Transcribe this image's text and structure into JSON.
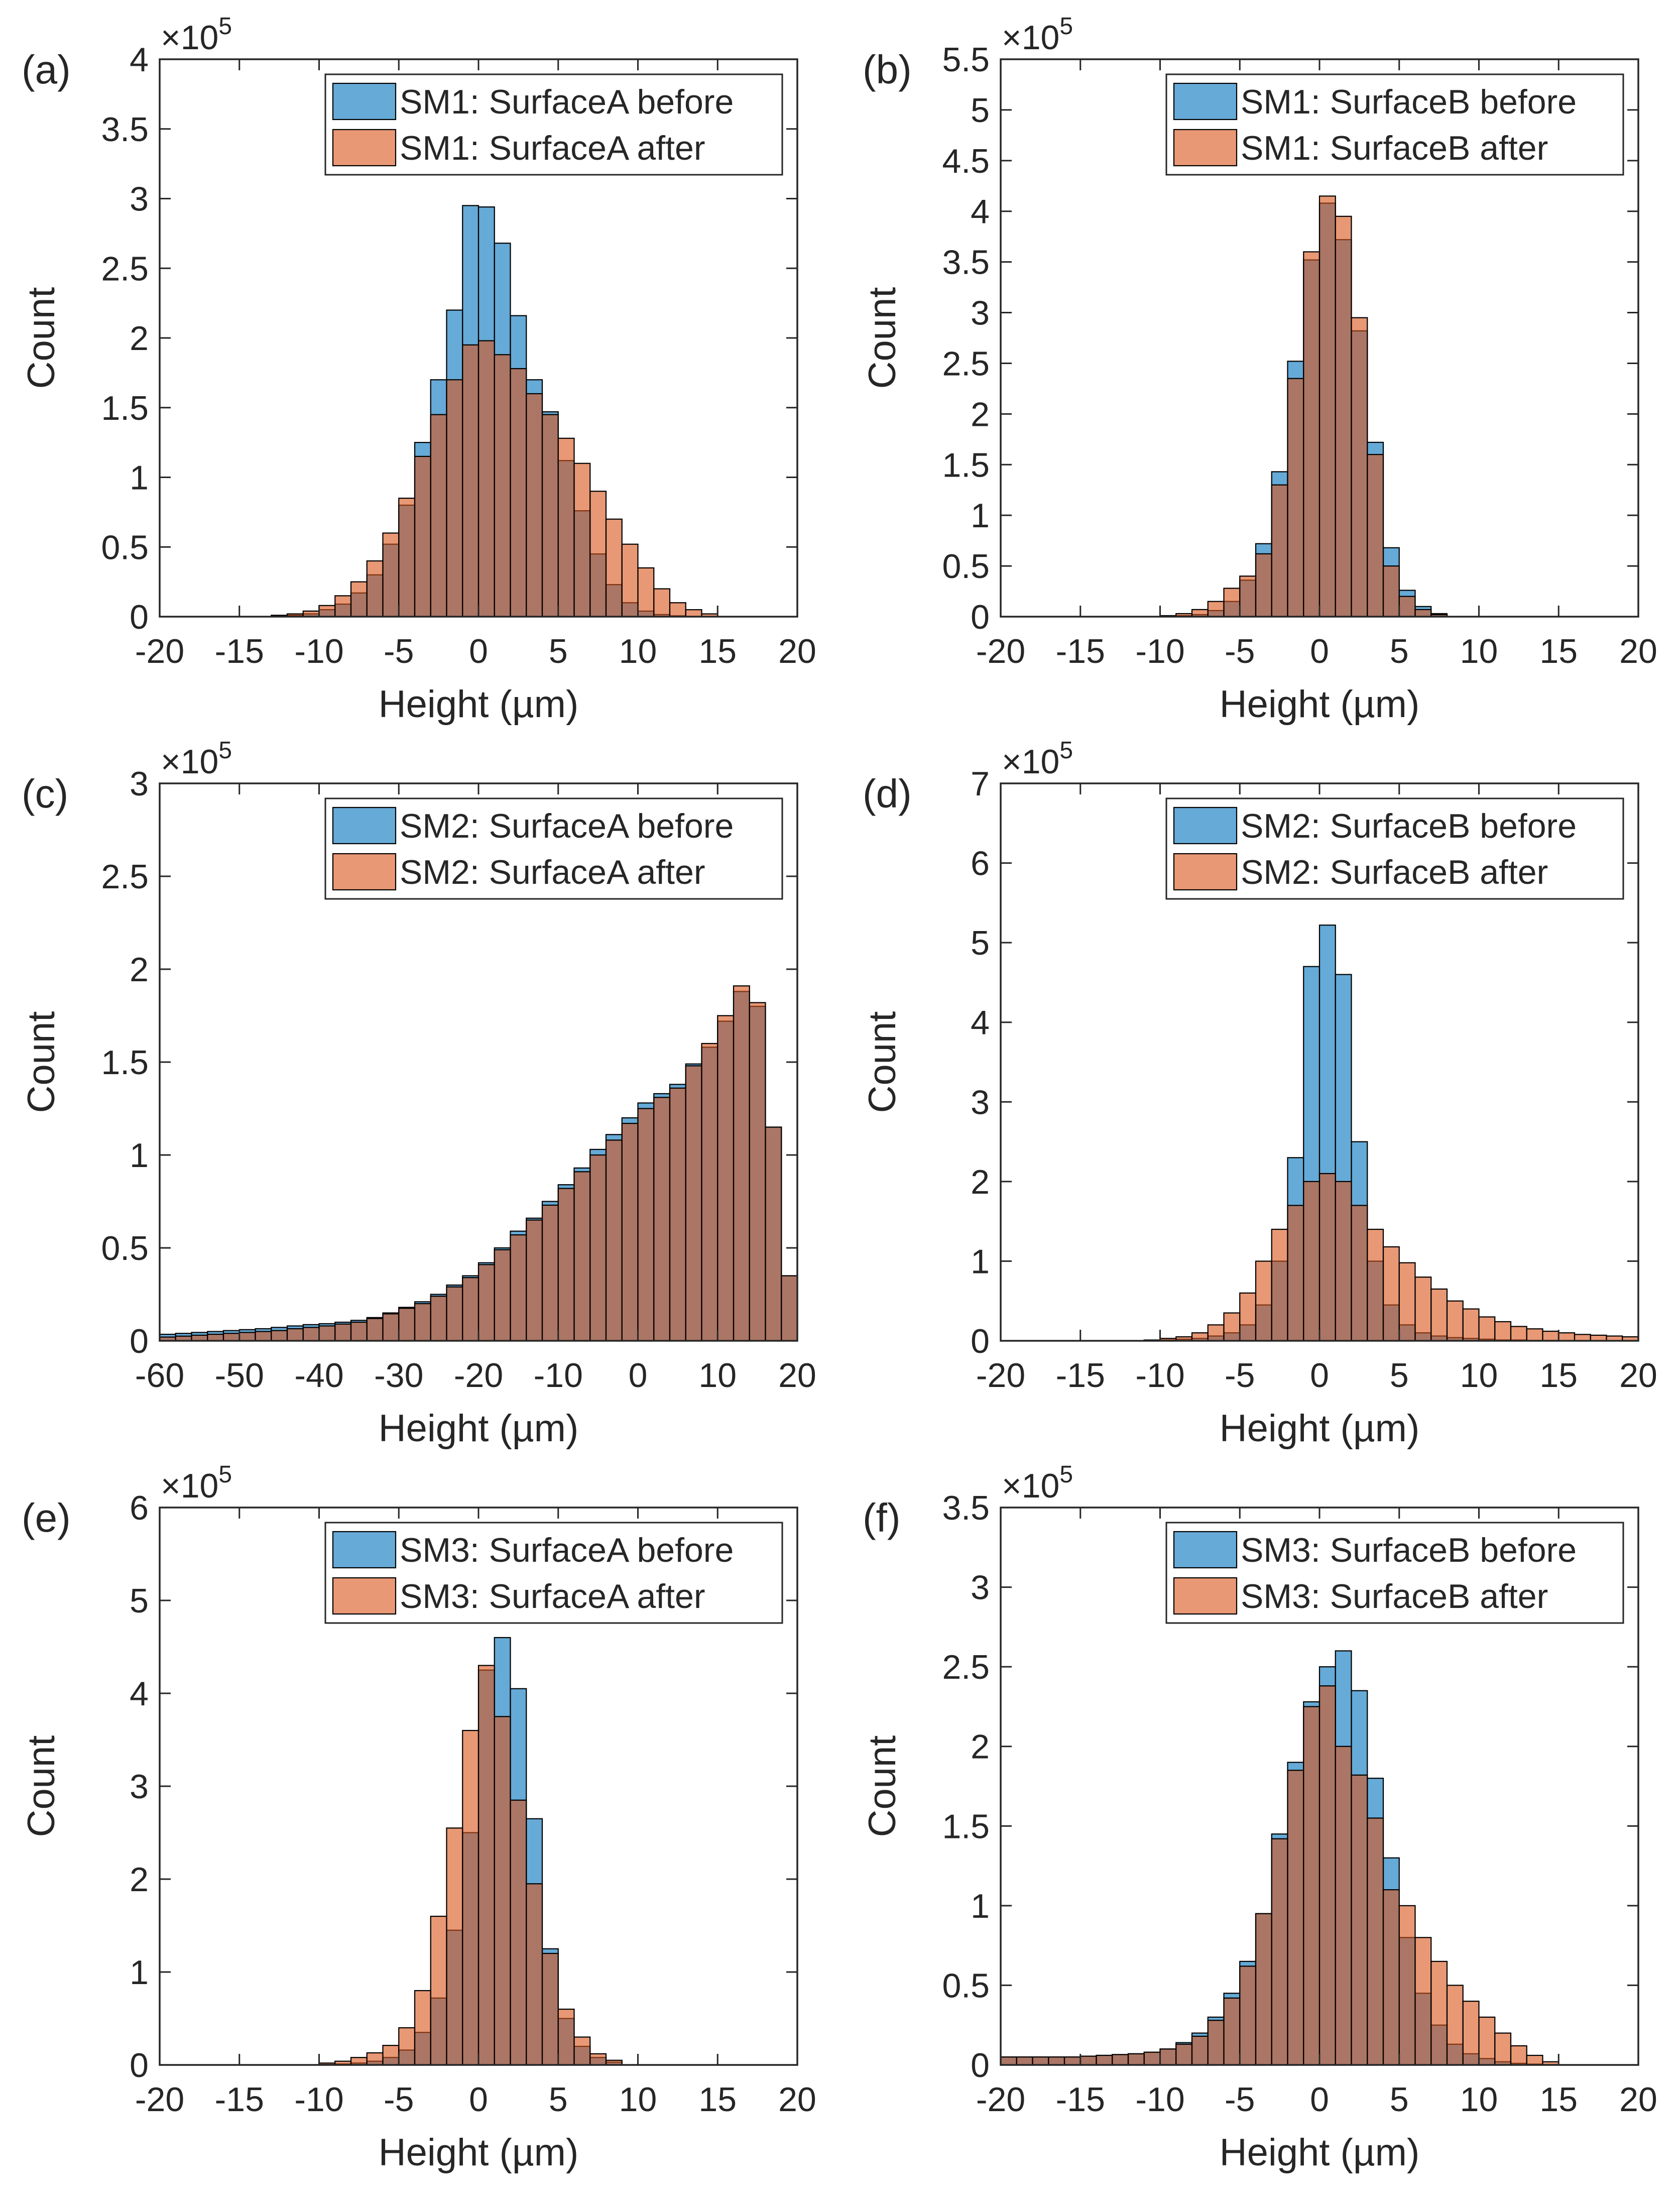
{
  "colors": {
    "before": "#0072BD",
    "after": "#D95319",
    "axis": "#262626",
    "bar_edge": "#000000"
  },
  "chart_data": [
    {
      "type": "bar",
      "panel_label": "(a)",
      "xlabel": "Height (µm)",
      "ylabel": "Count",
      "exponent_label": "×10",
      "exponent_power": "5",
      "x_ticks": [
        "-20",
        "-15",
        "-10",
        "-5",
        "0",
        "5",
        "10",
        "15",
        "20"
      ],
      "y_ticks": [
        "0",
        "0.5",
        "1",
        "1.5",
        "2",
        "2.5",
        "3",
        "3.5",
        "4"
      ],
      "xlim": [
        -20,
        20
      ],
      "ylim": [
        0,
        4
      ],
      "bin_edges": [
        -13,
        -12,
        -11,
        -10,
        -9,
        -8,
        -7,
        -6,
        -5,
        -4,
        -3,
        -2,
        -1,
        0,
        1,
        2,
        3,
        4,
        5,
        6,
        7,
        8,
        9,
        10,
        11,
        12,
        13,
        14,
        15
      ],
      "legend": {
        "position": "top-right"
      },
      "series": [
        {
          "name": "SM1: SurfaceA before",
          "color_key": "before",
          "values": [
            0.005,
            0.01,
            0.02,
            0.05,
            0.09,
            0.17,
            0.3,
            0.52,
            0.8,
            1.25,
            1.7,
            2.2,
            2.95,
            2.94,
            2.68,
            2.16,
            1.7,
            1.47,
            1.12,
            0.76,
            0.45,
            0.23,
            0.1,
            0.04,
            0.015,
            0.006,
            0.002,
            0.001
          ]
        },
        {
          "name": "SM1: SurfaceA after",
          "color_key": "after",
          "values": [
            0.01,
            0.02,
            0.04,
            0.08,
            0.15,
            0.25,
            0.4,
            0.6,
            0.85,
            1.15,
            1.45,
            1.7,
            1.95,
            1.98,
            1.88,
            1.78,
            1.6,
            1.45,
            1.28,
            1.1,
            0.9,
            0.7,
            0.52,
            0.35,
            0.2,
            0.1,
            0.05,
            0.02
          ]
        }
      ]
    },
    {
      "type": "bar",
      "panel_label": "(b)",
      "xlabel": "Height (µm)",
      "ylabel": "Count",
      "exponent_label": "×10",
      "exponent_power": "5",
      "x_ticks": [
        "-20",
        "-15",
        "-10",
        "-5",
        "0",
        "5",
        "10",
        "15",
        "20"
      ],
      "y_ticks": [
        "0",
        "0.5",
        "1",
        "1.5",
        "2",
        "2.5",
        "3",
        "3.5",
        "4",
        "4.5",
        "5",
        "5.5"
      ],
      "xlim": [
        -20,
        20
      ],
      "ylim": [
        0,
        5.5
      ],
      "bin_edges": [
        -10,
        -9,
        -8,
        -7,
        -6,
        -5,
        -4,
        -3,
        -2,
        -1,
        0,
        1,
        2,
        3,
        4,
        5,
        6,
        7,
        8
      ],
      "legend": {
        "position": "top-right"
      },
      "series": [
        {
          "name": "SM1: SurfaceB before",
          "color_key": "before",
          "values": [
            0.005,
            0.01,
            0.02,
            0.06,
            0.15,
            0.36,
            0.72,
            1.43,
            2.52,
            3.52,
            4.08,
            3.72,
            2.82,
            1.72,
            0.68,
            0.26,
            0.1,
            0.03
          ]
        },
        {
          "name": "SM1: SurfaceB after",
          "color_key": "after",
          "values": [
            0.01,
            0.03,
            0.07,
            0.15,
            0.28,
            0.4,
            0.62,
            1.3,
            2.35,
            3.6,
            4.15,
            3.95,
            2.95,
            1.6,
            0.5,
            0.2,
            0.07,
            0.02
          ]
        }
      ]
    },
    {
      "type": "bar",
      "panel_label": "(c)",
      "xlabel": "Height (µm)",
      "ylabel": "Count",
      "exponent_label": "×10",
      "exponent_power": "5",
      "x_ticks": [
        "-60",
        "-50",
        "-40",
        "-30",
        "-20",
        "-10",
        "0",
        "10",
        "20"
      ],
      "y_ticks": [
        "0",
        "0.5",
        "1",
        "1.5",
        "2",
        "2.5",
        "3"
      ],
      "xlim": [
        -60,
        20
      ],
      "ylim": [
        0,
        3
      ],
      "bin_edges": [
        -60,
        -58,
        -56,
        -54,
        -52,
        -50,
        -48,
        -46,
        -44,
        -42,
        -40,
        -38,
        -36,
        -34,
        -32,
        -30,
        -28,
        -26,
        -24,
        -22,
        -20,
        -18,
        -16,
        -14,
        -12,
        -10,
        -8,
        -6,
        -4,
        -2,
        0,
        2,
        4,
        6,
        8,
        10,
        12,
        14,
        16,
        18,
        20
      ],
      "legend": {
        "position": "top-right"
      },
      "series": [
        {
          "name": "SM2: SurfaceA before",
          "color_key": "before",
          "values": [
            0.035,
            0.04,
            0.045,
            0.05,
            0.055,
            0.06,
            0.065,
            0.072,
            0.08,
            0.087,
            0.092,
            0.1,
            0.11,
            0.125,
            0.15,
            0.18,
            0.21,
            0.25,
            0.3,
            0.35,
            0.42,
            0.5,
            0.59,
            0.66,
            0.75,
            0.84,
            0.93,
            1.03,
            1.11,
            1.2,
            1.28,
            1.33,
            1.38,
            1.49,
            1.58,
            1.72,
            1.88,
            1.8,
            1.15,
            0.35
          ]
        },
        {
          "name": "SM2: SurfaceA after",
          "color_key": "after",
          "values": [
            0.02,
            0.025,
            0.03,
            0.035,
            0.04,
            0.045,
            0.05,
            0.055,
            0.065,
            0.072,
            0.08,
            0.09,
            0.1,
            0.12,
            0.145,
            0.175,
            0.2,
            0.24,
            0.29,
            0.34,
            0.41,
            0.49,
            0.57,
            0.65,
            0.73,
            0.82,
            0.91,
            1.0,
            1.08,
            1.17,
            1.25,
            1.31,
            1.36,
            1.48,
            1.6,
            1.75,
            1.91,
            1.82,
            1.15,
            0.35
          ]
        }
      ]
    },
    {
      "type": "bar",
      "panel_label": "(d)",
      "xlabel": "Height (µm)",
      "ylabel": "Count",
      "exponent_label": "×10",
      "exponent_power": "5",
      "x_ticks": [
        "-20",
        "-15",
        "-10",
        "-5",
        "0",
        "5",
        "10",
        "15",
        "20"
      ],
      "y_ticks": [
        "0",
        "1",
        "2",
        "3",
        "4",
        "5",
        "6",
        "7"
      ],
      "xlim": [
        -20,
        20
      ],
      "ylim": [
        0,
        7
      ],
      "bin_edges": [
        -11,
        -10,
        -9,
        -8,
        -7,
        -6,
        -5,
        -4,
        -3,
        -2,
        -1,
        0,
        1,
        2,
        3,
        4,
        5,
        6,
        7,
        8,
        9,
        10,
        11,
        12,
        13,
        14,
        15,
        16,
        17,
        18,
        19,
        20
      ],
      "legend": {
        "position": "top-right"
      },
      "series": [
        {
          "name": "SM2: SurfaceB before",
          "color_key": "before",
          "values": [
            0.005,
            0.01,
            0.02,
            0.03,
            0.06,
            0.1,
            0.2,
            0.45,
            1.0,
            2.3,
            4.7,
            5.22,
            4.6,
            2.5,
            1.0,
            0.45,
            0.2,
            0.1,
            0.06,
            0.04,
            0.03,
            0.02,
            0.01,
            0.01,
            0.005,
            0.005,
            0.003,
            0.002,
            0.002,
            0.001,
            0.001
          ]
        },
        {
          "name": "SM2: SurfaceB after",
          "color_key": "after",
          "values": [
            0.01,
            0.03,
            0.05,
            0.1,
            0.2,
            0.35,
            0.6,
            1.0,
            1.4,
            1.7,
            2.0,
            2.1,
            2.0,
            1.7,
            1.4,
            1.18,
            0.98,
            0.8,
            0.65,
            0.5,
            0.4,
            0.3,
            0.24,
            0.18,
            0.15,
            0.12,
            0.1,
            0.08,
            0.07,
            0.06,
            0.05
          ]
        }
      ]
    },
    {
      "type": "bar",
      "panel_label": "(e)",
      "xlabel": "Height (µm)",
      "ylabel": "Count",
      "exponent_label": "×10",
      "exponent_power": "5",
      "x_ticks": [
        "-20",
        "-15",
        "-10",
        "-5",
        "0",
        "5",
        "10",
        "15",
        "20"
      ],
      "y_ticks": [
        "0",
        "1",
        "2",
        "3",
        "4",
        "5",
        "6"
      ],
      "xlim": [
        -20,
        20
      ],
      "ylim": [
        0,
        6
      ],
      "bin_edges": [
        -10,
        -9,
        -8,
        -7,
        -6,
        -5,
        -4,
        -3,
        -2,
        -1,
        0,
        1,
        2,
        3,
        4,
        5,
        6,
        7,
        8,
        9
      ],
      "legend": {
        "position": "top-right"
      },
      "series": [
        {
          "name": "SM3: SurfaceA before",
          "color_key": "before",
          "values": [
            0.005,
            0.01,
            0.02,
            0.04,
            0.08,
            0.16,
            0.35,
            0.72,
            1.45,
            2.5,
            4.25,
            4.6,
            4.05,
            2.65,
            1.25,
            0.5,
            0.2,
            0.08,
            0.03
          ]
        },
        {
          "name": "SM3: SurfaceA after",
          "color_key": "after",
          "values": [
            0.02,
            0.04,
            0.08,
            0.13,
            0.21,
            0.4,
            0.8,
            1.6,
            2.55,
            3.6,
            4.3,
            3.75,
            2.85,
            1.95,
            1.2,
            0.6,
            0.3,
            0.12,
            0.05
          ]
        }
      ]
    },
    {
      "type": "bar",
      "panel_label": "(f)",
      "xlabel": "Height (µm)",
      "ylabel": "Count",
      "exponent_label": "×10",
      "exponent_power": "5",
      "x_ticks": [
        "-20",
        "-15",
        "-10",
        "-5",
        "0",
        "5",
        "10",
        "15",
        "20"
      ],
      "y_ticks": [
        "0",
        "0.5",
        "1",
        "1.5",
        "2",
        "2.5",
        "3",
        "3.5"
      ],
      "xlim": [
        -20,
        20
      ],
      "ylim": [
        0,
        3.5
      ],
      "bin_edges": [
        -20,
        -19,
        -18,
        -17,
        -16,
        -15,
        -14,
        -13,
        -12,
        -11,
        -10,
        -9,
        -8,
        -7,
        -6,
        -5,
        -4,
        -3,
        -2,
        -1,
        0,
        1,
        2,
        3,
        4,
        5,
        6,
        7,
        8,
        9,
        10,
        11,
        12,
        13,
        14,
        15
      ],
      "legend": {
        "position": "top-right"
      },
      "series": [
        {
          "name": "SM3: SurfaceB before",
          "color_key": "before",
          "values": [
            0.05,
            0.05,
            0.05,
            0.05,
            0.05,
            0.055,
            0.06,
            0.065,
            0.07,
            0.08,
            0.1,
            0.14,
            0.2,
            0.3,
            0.45,
            0.65,
            0.95,
            1.45,
            1.9,
            2.28,
            2.5,
            2.6,
            2.35,
            1.8,
            1.3,
            0.8,
            0.45,
            0.25,
            0.13,
            0.07,
            0.04,
            0.02,
            0.01,
            0.005,
            0.002
          ]
        },
        {
          "name": "SM3: SurfaceB after",
          "color_key": "after",
          "values": [
            0.05,
            0.05,
            0.05,
            0.05,
            0.05,
            0.055,
            0.06,
            0.065,
            0.07,
            0.08,
            0.1,
            0.13,
            0.18,
            0.28,
            0.42,
            0.62,
            0.95,
            1.42,
            1.85,
            2.25,
            2.38,
            2.0,
            1.82,
            1.55,
            1.1,
            1.0,
            0.8,
            0.65,
            0.5,
            0.4,
            0.3,
            0.2,
            0.12,
            0.06,
            0.02
          ]
        }
      ]
    }
  ]
}
